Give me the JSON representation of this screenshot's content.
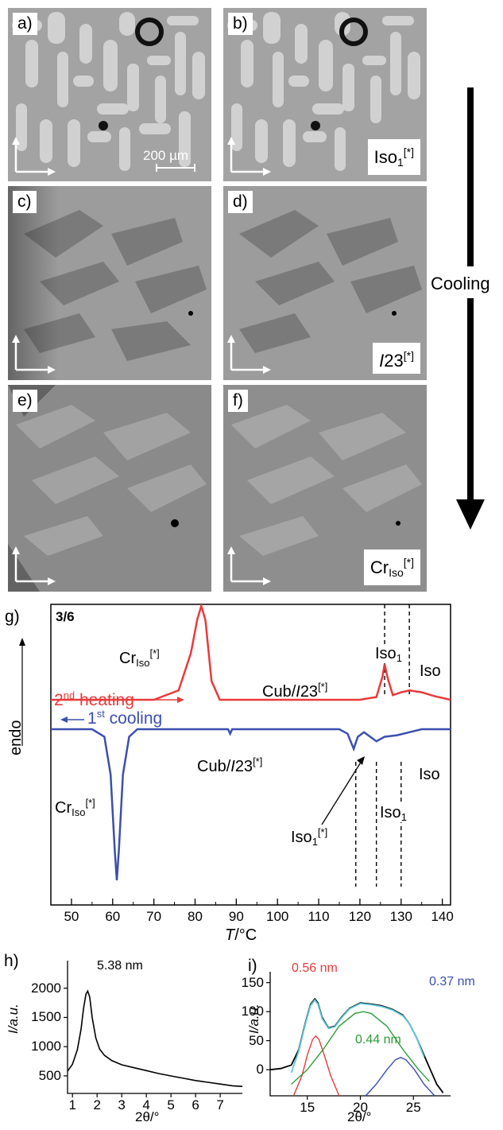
{
  "panels": {
    "a": {
      "label": "a)",
      "scale_bar": "200 µm"
    },
    "b": {
      "label": "b)",
      "phase_base": "Iso",
      "phase_sub": "1",
      "phase_sup": "[*]"
    },
    "c": {
      "label": "c)"
    },
    "d": {
      "label": "d)",
      "phase_ital": "I",
      "phase_base": "23",
      "phase_sup": "[*]"
    },
    "e": {
      "label": "e)"
    },
    "f": {
      "label": "f)",
      "phase_base": "Cr",
      "phase_sub": "Iso",
      "phase_sup": "[*]"
    }
  },
  "cooling_label": "Cooling",
  "dsc": {
    "panel_label": "g)",
    "sample": "3/6",
    "heating_label_pre": "2",
    "heating_label_sup": "nd",
    "heating_label_post": " heating",
    "cooling_label_pre": "1",
    "cooling_label_sup": "st",
    "cooling_label_post": " cooling",
    "y_axis_label": "endo",
    "x_axis_label_T": "T",
    "x_axis_label_unit": "/°C",
    "annotations": {
      "cr_iso_top": {
        "base": "Cr",
        "sub": "Iso",
        "sup": "[*]"
      },
      "cub_top": {
        "pre": "Cub/",
        "ital": "I",
        "post": "23",
        "sup": "[*]"
      },
      "iso1_top": {
        "base": "Iso",
        "sub": "1"
      },
      "iso_top": "Iso",
      "cr_iso_bot": {
        "base": "Cr",
        "sub": "Iso",
        "sup": "[*]"
      },
      "cub_bot": {
        "pre": "Cub/",
        "ital": "I",
        "post": "23",
        "sup": "[*]"
      },
      "iso1_star_bot": {
        "base": "Iso",
        "sub": "1",
        "sup": "[*]"
      },
      "iso1_bot": {
        "base": "Iso",
        "sub": "1"
      },
      "iso_bot": "Iso"
    },
    "x_ticks": [
      "50",
      "60",
      "70",
      "80",
      "90",
      "100",
      "110",
      "120",
      "130",
      "140"
    ]
  },
  "chart_data": [
    {
      "type": "line",
      "title": "3/6",
      "xlabel": "T/°C",
      "ylabel": "endo",
      "xlim": [
        45,
        142
      ],
      "series": [
        {
          "name": "2nd heating",
          "color": "#ea3a3a",
          "x": [
            45,
            70,
            76,
            79,
            80.5,
            81.5,
            82.5,
            84,
            86,
            100,
            120,
            124,
            125.5,
            126,
            126.8,
            128,
            130,
            132,
            135,
            138,
            142
          ],
          "y": [
            0,
            0,
            0.1,
            0.5,
            0.85,
            1.0,
            0.85,
            0.2,
            0,
            0,
            0,
            0.03,
            0.25,
            0.38,
            0.22,
            0.05,
            0.08,
            0.1,
            0.08,
            0.04,
            0
          ]
        },
        {
          "name": "1st cooling",
          "color": "#3b4fb0",
          "x": [
            45,
            55,
            58,
            59.5,
            60.5,
            61,
            61.5,
            62.5,
            64,
            66,
            80,
            88,
            88.5,
            89,
            100,
            115,
            117,
            118.5,
            119.5,
            121,
            123,
            124,
            126,
            129,
            132,
            135,
            142
          ],
          "y": [
            0,
            0,
            -0.05,
            -0.3,
            -0.8,
            -1.0,
            -0.8,
            -0.3,
            -0.05,
            0,
            0,
            0,
            -0.03,
            0,
            0,
            0,
            -0.03,
            -0.13,
            -0.05,
            -0.02,
            -0.06,
            -0.08,
            -0.05,
            -0.04,
            -0.02,
            0,
            0
          ]
        }
      ],
      "dashed_lines_x": [
        126,
        132,
        119,
        124,
        130
      ]
    },
    {
      "type": "line",
      "panel": "h)",
      "xlabel": "2θ/°",
      "ylabel": "I/a.u.",
      "x_ticks": [
        "1",
        "2",
        "3",
        "4",
        "5",
        "6",
        "7"
      ],
      "y_ticks": [
        "500",
        "1000",
        "1500",
        "2000"
      ],
      "xlim": [
        0.8,
        7.9
      ],
      "ylim": [
        200,
        2200
      ],
      "annotation": "5.38 nm",
      "series": [
        {
          "name": "",
          "color": "#000000",
          "x": [
            0.8,
            1.0,
            1.2,
            1.35,
            1.45,
            1.55,
            1.62,
            1.7,
            1.8,
            1.95,
            2.1,
            2.3,
            2.6,
            3.0,
            3.5,
            4.0,
            4.5,
            5.0,
            5.5,
            6.0,
            6.5,
            7.0,
            7.5,
            7.9
          ],
          "y": [
            580,
            700,
            950,
            1300,
            1650,
            1900,
            1950,
            1850,
            1500,
            1150,
            960,
            850,
            760,
            690,
            640,
            590,
            540,
            500,
            460,
            420,
            390,
            360,
            330,
            320
          ]
        }
      ]
    },
    {
      "type": "line",
      "panel": "i)",
      "xlabel": "2θ/°",
      "ylabel": "I/a.u.",
      "x_ticks": [
        "15",
        "20",
        "25"
      ],
      "y_ticks": [
        "0",
        "50",
        "100",
        "150"
      ],
      "xlim": [
        11.5,
        28.5
      ],
      "ylim": [
        -45,
        155
      ],
      "annotations": [
        "0.56 nm",
        "0.44 nm",
        "0.37 nm"
      ],
      "series": [
        {
          "name": "0.56 nm",
          "color": "#ea3a3a",
          "x": [
            13.7,
            14.5,
            15.0,
            15.5,
            15.8,
            16.1,
            16.6,
            17.2,
            18.0
          ],
          "y": [
            -45,
            -10,
            25,
            52,
            58,
            52,
            25,
            -10,
            -45
          ]
        },
        {
          "name": "0.44 nm",
          "color": "#2e9c3a",
          "x": [
            13.5,
            15,
            16.5,
            18,
            19.5,
            20.3,
            21,
            22.5,
            24,
            25.5,
            26.5
          ],
          "y": [
            -25,
            0,
            35,
            75,
            97,
            100,
            97,
            75,
            35,
            0,
            -20
          ]
        },
        {
          "name": "0.37 nm",
          "color": "#3b4fb0",
          "x": [
            20.5,
            21.5,
            22.5,
            23.3,
            23.8,
            24.3,
            25.1,
            26.0,
            27.0
          ],
          "y": [
            -45,
            -25,
            0,
            17,
            21,
            17,
            0,
            -25,
            -45
          ]
        },
        {
          "name": "",
          "color": "#000000",
          "x": [
            11.5,
            12.5,
            13.5,
            14.2,
            14.8,
            15.3,
            15.7,
            16.0,
            16.4,
            17.0,
            17.6,
            18.2,
            19.0,
            20.0,
            21.0,
            22.0,
            23.0,
            24.0,
            24.6,
            25.3,
            26.0,
            26.6,
            27.2,
            27.8
          ],
          "y": [
            0,
            2,
            8,
            35,
            80,
            112,
            122,
            115,
            90,
            72,
            75,
            90,
            106,
            115,
            113,
            110,
            104,
            94,
            80,
            55,
            25,
            0,
            -25,
            -40
          ]
        },
        {
          "name": "",
          "color": "#5bc8d8",
          "x": [
            13.5,
            14.2,
            14.8,
            15.3,
            15.7,
            16.0,
            16.4,
            17.0,
            17.6,
            18.2,
            19.0,
            20.0,
            21.0,
            22.0,
            23.0,
            24.0,
            24.6,
            25.3,
            26.0
          ],
          "y": [
            -5,
            33,
            78,
            110,
            120,
            113,
            88,
            71,
            74,
            89,
            105,
            114,
            112,
            109,
            103,
            93,
            80,
            55,
            22
          ]
        }
      ]
    }
  ]
}
